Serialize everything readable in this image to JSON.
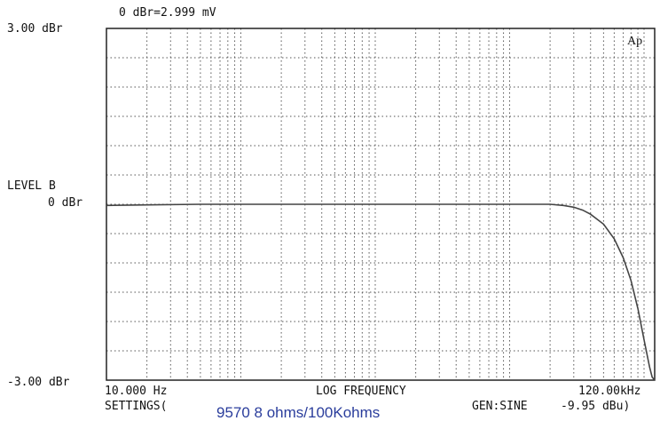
{
  "header": {
    "reference": "0 dBr=2.999 mV"
  },
  "logo_text": "Ap",
  "footer": {
    "settings": "SETTINGS(",
    "caption": "9570 8 ohms/100Kohms",
    "generator": "GEN:SINE",
    "generator_level": "-9.95 dBu)"
  },
  "chart_data": {
    "type": "line",
    "title": "",
    "xlabel": "LOG FREQUENCY",
    "ylabel_lines": [
      "LEVEL  B",
      "0 dBr"
    ],
    "x_scale": "log",
    "xlim": [
      10,
      120000
    ],
    "ylim": [
      -3,
      3
    ],
    "x_tick_labels": {
      "min": "10.000 Hz",
      "max": "120.00kHz"
    },
    "y_tick_labels": {
      "max": "3.00 dBr",
      "min": "-3.00 dBr"
    },
    "grid": true,
    "grid_style": "dotted",
    "line_color": "#444444",
    "series": [
      {
        "x": [
          10,
          20,
          50,
          100,
          200,
          500,
          1000,
          2000,
          5000,
          10000,
          15000,
          20000,
          25000,
          30000,
          35000,
          40000,
          50000,
          60000,
          70000,
          80000,
          90000,
          100000,
          110000,
          115000,
          120000
        ],
        "y": [
          -0.02,
          -0.01,
          0,
          0,
          0,
          0,
          0,
          0,
          0,
          0,
          0,
          0,
          -0.02,
          -0.05,
          -0.1,
          -0.17,
          -0.34,
          -0.59,
          -0.91,
          -1.3,
          -1.78,
          -2.31,
          -2.78,
          -2.95,
          -3.0
        ]
      }
    ]
  }
}
